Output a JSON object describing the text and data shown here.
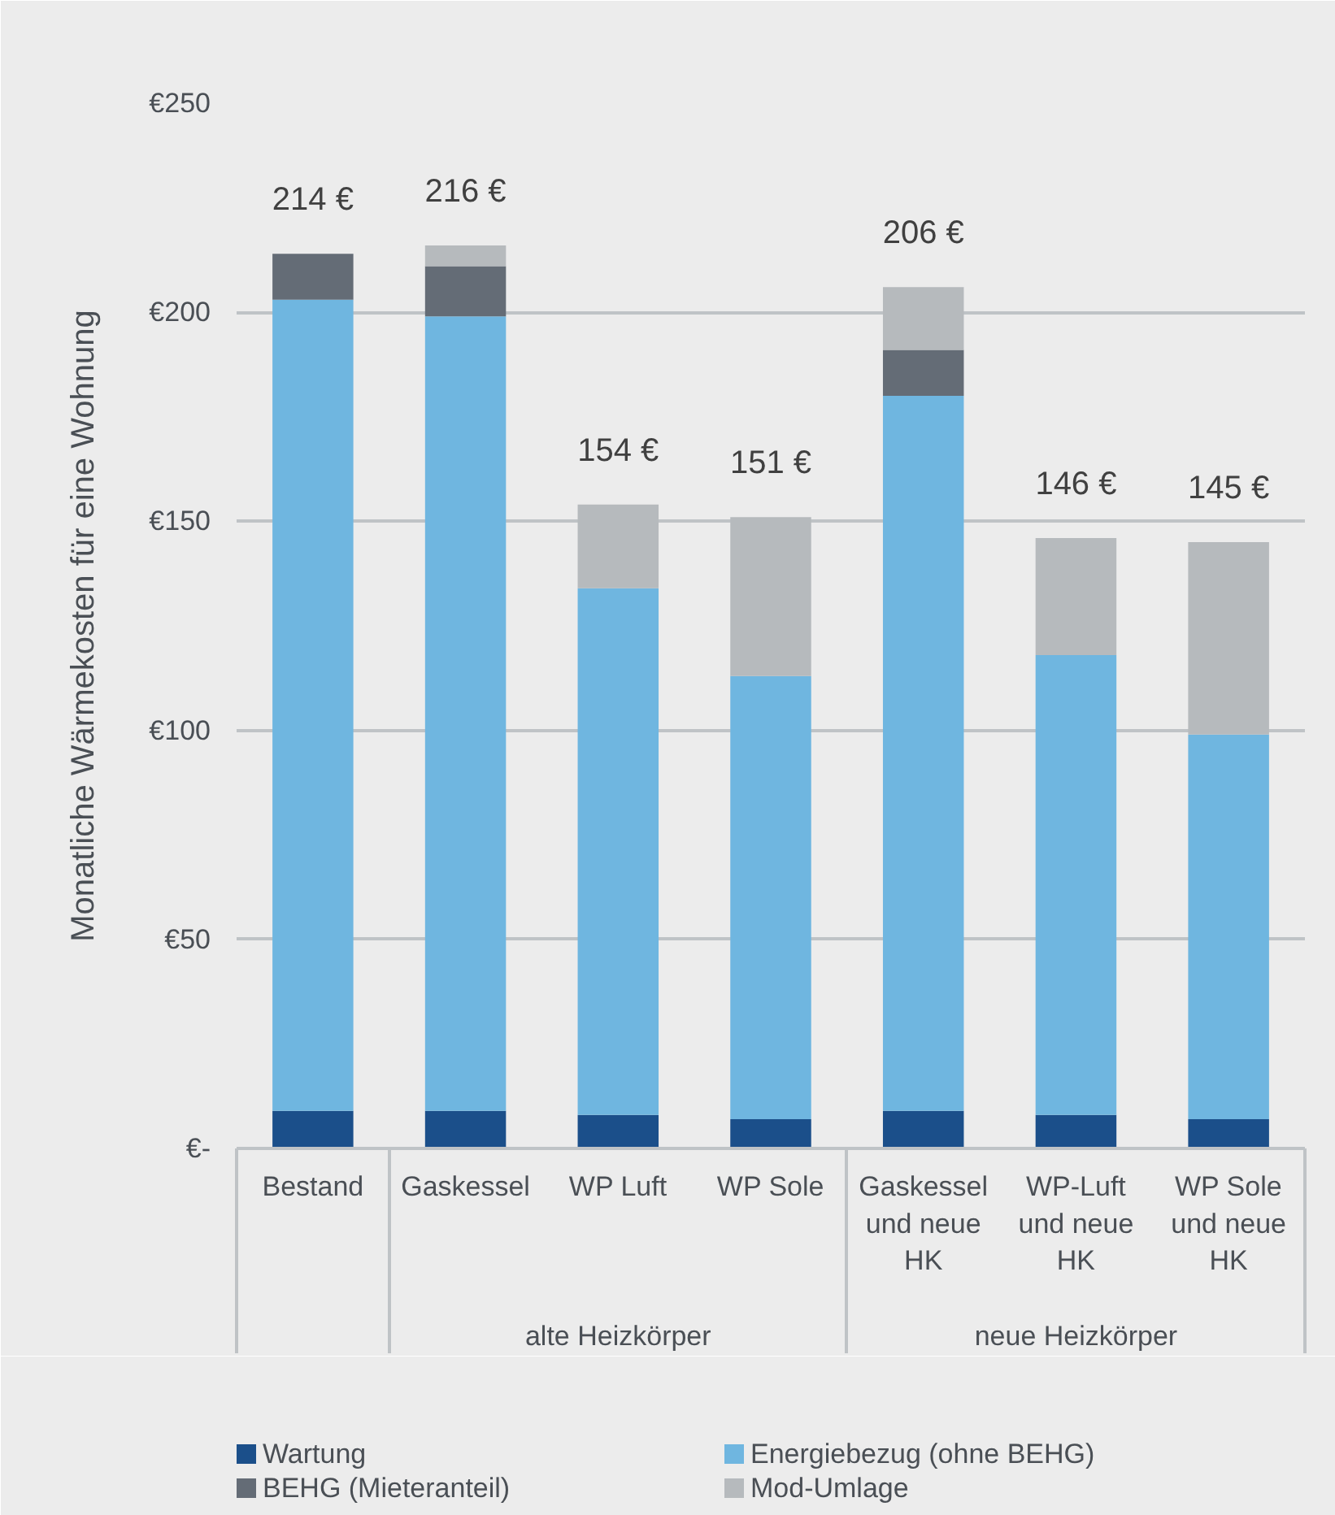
{
  "chart_data": {
    "type": "bar",
    "stacked": true,
    "ylabel": "Monatliche Wärmekosten für eine Wohnung",
    "categories": [
      "Bestand",
      "Gaskessel",
      "WP Luft",
      "WP Sole",
      "Gaskessel und neue HK",
      "WP-Luft und neue HK",
      "WP Sole und neue HK"
    ],
    "series": [
      {
        "name": "Wartung",
        "color": "#1b4f8a",
        "values": [
          9,
          9,
          8,
          7,
          9,
          8,
          7
        ]
      },
      {
        "name": "Energiebezug (ohne BEHG)",
        "color": "#6fb6e0",
        "values": [
          194,
          190,
          126,
          106,
          171,
          110,
          92
        ]
      },
      {
        "name": "BEHG (Mieteranteil)",
        "color": "#646c76",
        "values": [
          11,
          12,
          null,
          null,
          11,
          null,
          null
        ]
      },
      {
        "name": "Mod-Umlage",
        "color": "#b6babd",
        "values": [
          null,
          5,
          20,
          38,
          15,
          28,
          46
        ]
      }
    ],
    "totals": [
      "214 €",
      "216 €",
      "154 €",
      "151 €",
      "206 €",
      "146 €",
      "145 €"
    ],
    "ylim": [
      0,
      250
    ],
    "yticks": [
      {
        "value": 0,
        "label": "€-"
      },
      {
        "value": 50,
        "label": "€50"
      },
      {
        "value": 100,
        "label": "€100"
      },
      {
        "value": 150,
        "label": "€150"
      },
      {
        "value": 200,
        "label": "€200"
      },
      {
        "value": 250,
        "label": "€250"
      }
    ],
    "grid": "y",
    "legend": "bottom",
    "annotations": [
      "alte Heizkörper",
      "neue Heizkörper"
    ]
  }
}
